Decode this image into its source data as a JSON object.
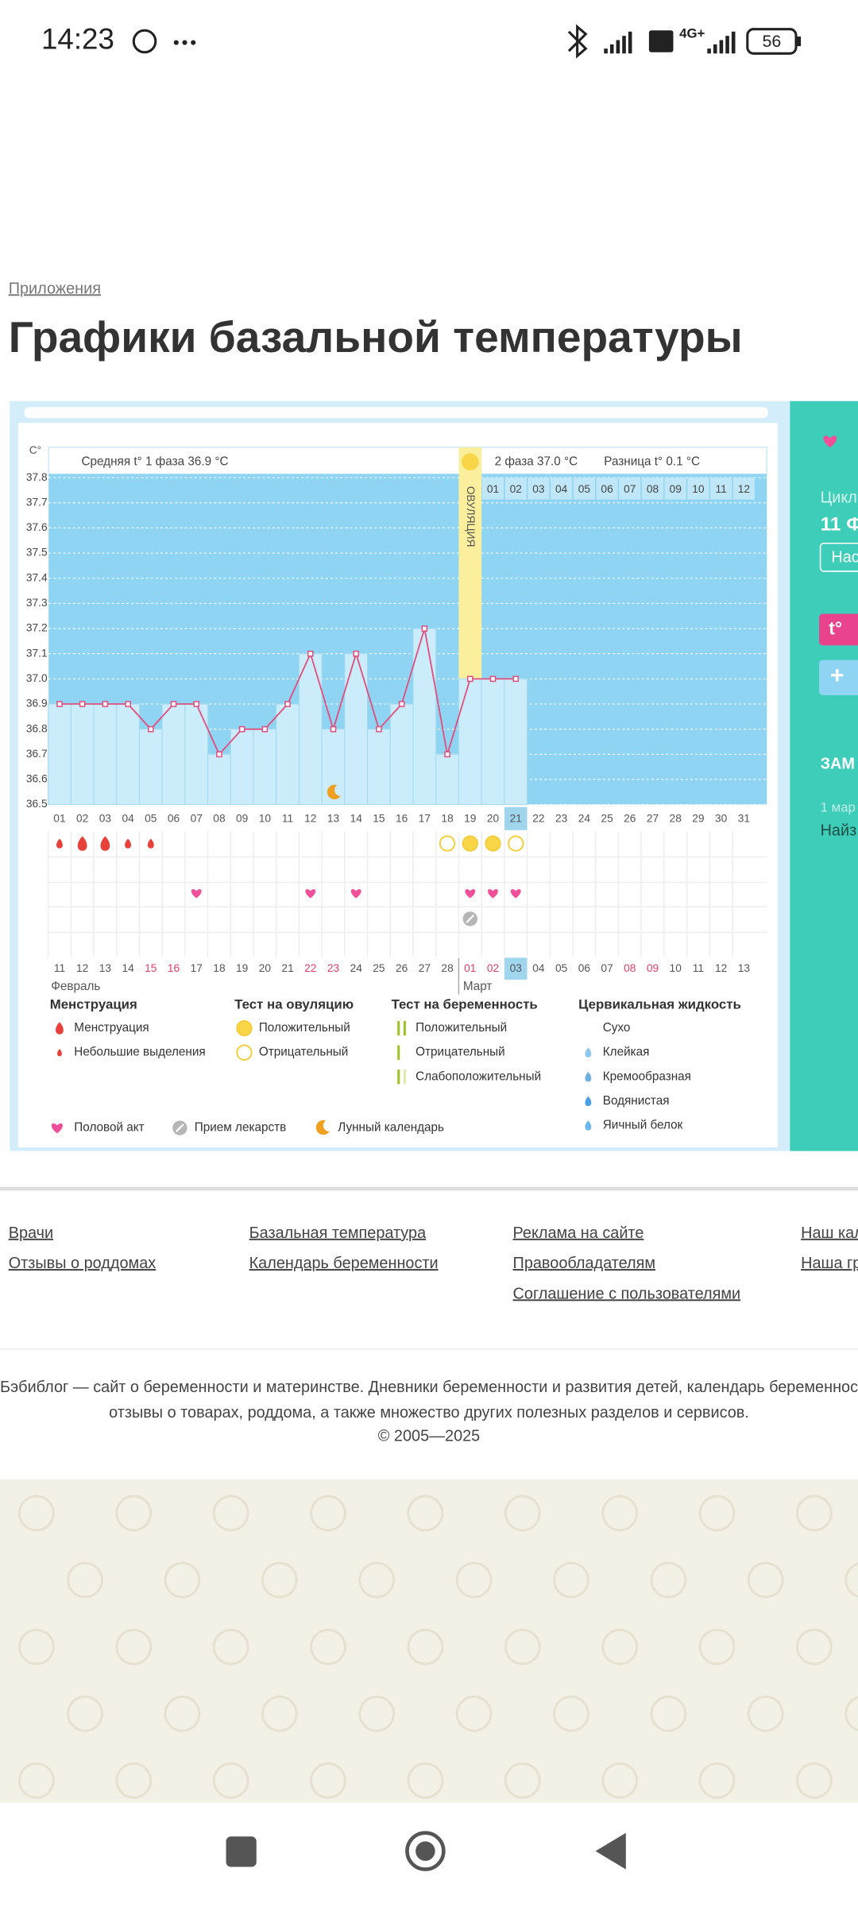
{
  "status_bar": {
    "time": "14:23",
    "network": "4G+",
    "battery": "56"
  },
  "breadcrumb": "Приложения",
  "title": "Графики базальной температуры",
  "chart_data": {
    "type": "line",
    "y_label": "C°",
    "phase1_text": "Средняя t° 1 фаза 36.9 °C",
    "phase2_text": "2 фаза 37.0 °C",
    "diff_text": "Разница t° 0.1 °C",
    "ovulation_label": "ОВУЛЯЦИЯ",
    "categories": [
      "01",
      "02",
      "03",
      "04",
      "05",
      "06",
      "07",
      "08",
      "09",
      "10",
      "11",
      "12",
      "13",
      "14",
      "15",
      "16",
      "17",
      "18",
      "19",
      "20",
      "21",
      "22",
      "23",
      "24",
      "25",
      "26",
      "27",
      "28",
      "29",
      "30",
      "31"
    ],
    "dates": [
      "11",
      "12",
      "13",
      "14",
      "15",
      "16",
      "17",
      "18",
      "19",
      "20",
      "21",
      "22",
      "23",
      "24",
      "25",
      "26",
      "27",
      "28",
      "01",
      "02",
      "03",
      "04",
      "05",
      "06",
      "07",
      "08",
      "09",
      "10",
      "11",
      "12",
      "13"
    ],
    "phase2_days": [
      "01",
      "02",
      "03",
      "04",
      "05",
      "06",
      "07",
      "08",
      "09",
      "10",
      "11",
      "12"
    ],
    "months": [
      "Февраль",
      "Март"
    ],
    "values": [
      36.9,
      36.9,
      36.9,
      36.9,
      36.8,
      36.9,
      36.9,
      36.7,
      36.8,
      36.8,
      36.9,
      37.1,
      36.8,
      37.1,
      36.8,
      36.9,
      37.2,
      36.7,
      37.0,
      37.0,
      37.0,
      null,
      null,
      null,
      null,
      null,
      null,
      null,
      null,
      null,
      null
    ],
    "color": "#e0507f",
    "ylim": [
      36.5,
      37.8
    ],
    "yticks": [
      36.5,
      36.6,
      36.7,
      36.8,
      36.9,
      {
        "value": 37,
        "label": "37.0"
      },
      37.1,
      37.2,
      37.3,
      37.4,
      37.5,
      37.6,
      37.7,
      37.8
    ],
    "grid": true,
    "legend": {
      "groups": [
        {
          "title": "Менструация",
          "items": [
            "Менструация",
            "Небольшие выделения"
          ]
        },
        {
          "title": "Тест на овуляцию",
          "items": [
            "Положительный",
            "Отрицательный"
          ]
        },
        {
          "title": "Тест на беременность",
          "items": [
            "Положительный",
            "Отрицательный",
            "Слабоположительный"
          ]
        },
        {
          "title": "Цервикальная жидкость",
          "items": [
            "Сухо",
            "Клейкая",
            "Кремообразная",
            "Водянистая",
            "Яичный белок"
          ]
        }
      ],
      "extra": [
        "Половой акт",
        "Прием лекарств",
        "Лунный календарь"
      ]
    }
  },
  "sidebar": {
    "cycle": "Цикл",
    "cycle_value": "11 Ф",
    "button": "Нас",
    "temp_button": "t°",
    "plus": "+",
    "notes": "ЗАМ",
    "date": "1 мар",
    "find": "Найз"
  },
  "footer": {
    "links": [
      [
        "Врачи",
        "Отзывы о роддомах"
      ],
      [
        "Базальная температура",
        "Календарь беременности"
      ],
      [
        "Реклама на сайте",
        "Правообладателям",
        "Соглашение с пользователями"
      ],
      [
        "Наш кал",
        "Наша гр"
      ]
    ],
    "about": [
      "Бэбиблог — сайт о беременности и материнстве. Дневники беременности и развития детей, календарь беременност",
      "отзывы о товарах, роддома, а также множество других полезных разделов и сервисов.",
      "© 2005—2025"
    ]
  }
}
